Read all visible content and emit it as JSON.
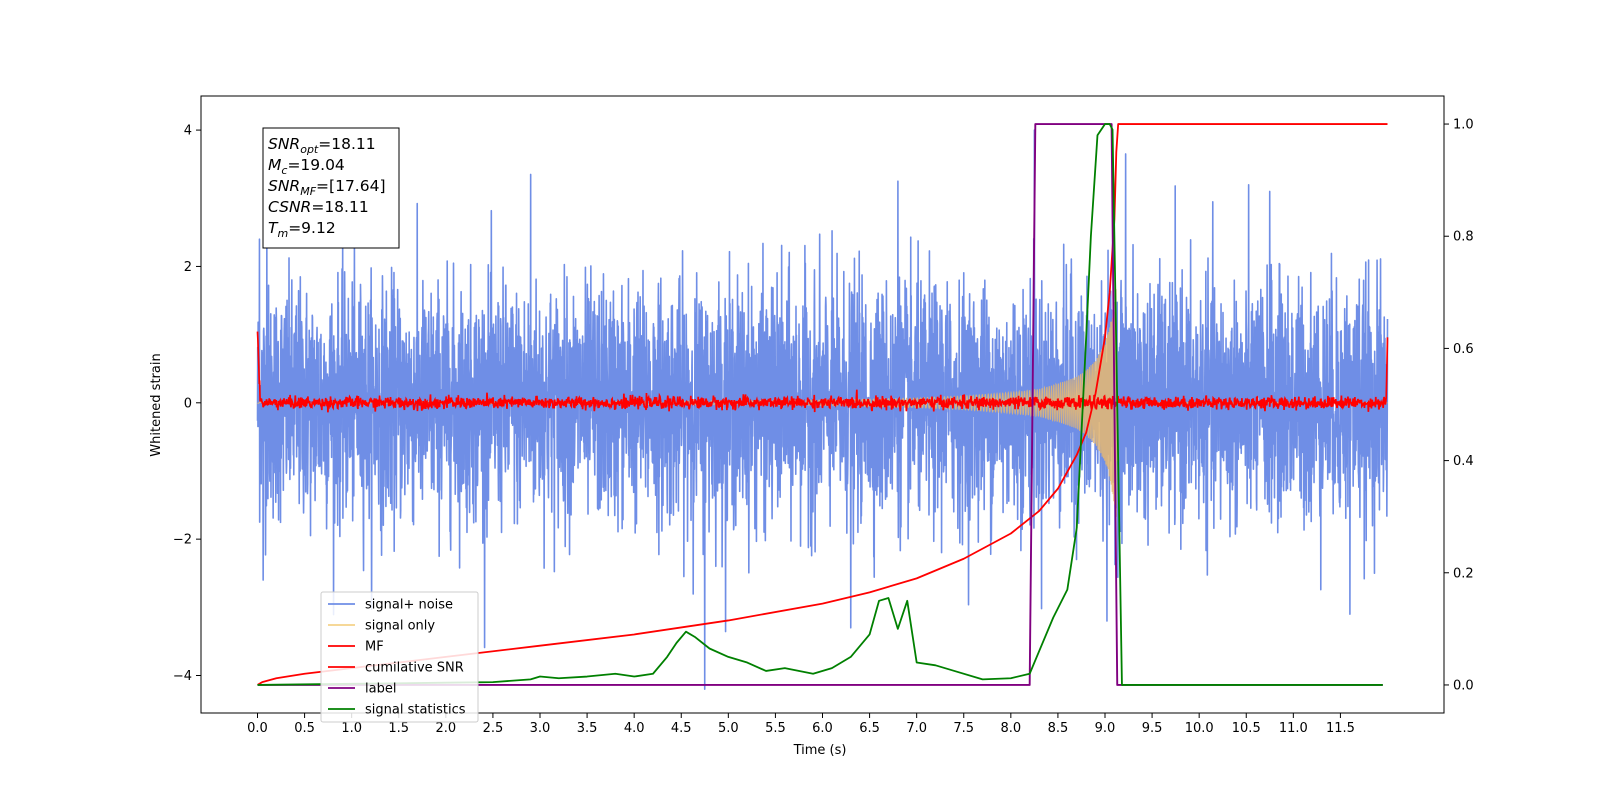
{
  "chart_data": {
    "type": "line",
    "title": "",
    "xlabel": "Time (s)",
    "ylabel": "Whitened strain",
    "xlim": [
      -0.6,
      12.6
    ],
    "ylim": [
      -4.55,
      4.5
    ],
    "y2lim": [
      -0.05,
      1.05
    ],
    "x_ticks": [
      0.0,
      0.5,
      1.0,
      1.5,
      2.0,
      2.5,
      3.0,
      3.5,
      4.0,
      4.5,
      5.0,
      5.5,
      6.0,
      6.5,
      7.0,
      7.5,
      8.0,
      8.5,
      9.0,
      9.5,
      10.0,
      10.5,
      11.0,
      11.5
    ],
    "x_tick_labels": [
      "0.0",
      "0.5",
      "1.0",
      "1.5",
      "2.0",
      "2.5",
      "3.0",
      "3.5",
      "4.0",
      "4.5",
      "5.0",
      "5.5",
      "6.0",
      "6.5",
      "7.0",
      "7.5",
      "8.0",
      "8.5",
      "9.0",
      "9.5",
      "10.0",
      "10.5",
      "11.0",
      "11.5"
    ],
    "y_ticks": [
      -4,
      -2,
      0,
      2,
      4
    ],
    "y_tick_labels": [
      "−4",
      "−2",
      "0",
      "2",
      "4"
    ],
    "y2_ticks": [
      0.0,
      0.2,
      0.4,
      0.6,
      0.8,
      1.0
    ],
    "y2_tick_labels": [
      "0.0",
      "0.2",
      "0.4",
      "0.6",
      "0.8",
      "1.0"
    ],
    "grid": false,
    "legend_position": "lower-left",
    "annotation": [
      {
        "base": "SNR",
        "sub": "opt",
        "rest": "=18.11"
      },
      {
        "base": "M",
        "sub": "c",
        "rest": "=19.04"
      },
      {
        "base": "SNR",
        "sub": "MF",
        "rest": "=[17.64]"
      },
      {
        "base": "CSNR",
        "sub": "",
        "rest": "=18.11"
      },
      {
        "base": "T",
        "sub": "m",
        "rest": "=9.12"
      }
    ],
    "legend": [
      {
        "label": "signal+ noise",
        "color": "#6f8ee6"
      },
      {
        "label": "signal only",
        "color": "#f5d28a"
      },
      {
        "label": "MF",
        "color": "#ff0000"
      },
      {
        "label": "cumilative SNR",
        "color": "#ff0000"
      },
      {
        "label": "label",
        "color": "#800080"
      },
      {
        "label": "signal statistics",
        "color": "#008000"
      }
    ],
    "series": [
      {
        "name": "signal+ noise",
        "axis": "left",
        "color": "#6f8ee6",
        "description": "dense noise trace, t = 0 to 12 s, typical amplitude about ±1.5, peaks to about ±3",
        "x_range": [
          0.0,
          12.0
        ],
        "envelope": 2.6,
        "spikes": [
          [
            0.02,
            2.4
          ],
          [
            0.06,
            -2.6
          ],
          [
            0.1,
            2.5
          ],
          [
            2.9,
            3.35
          ],
          [
            4.75,
            -4.2
          ],
          [
            6.3,
            -3.3
          ],
          [
            6.8,
            3.25
          ],
          [
            8.25,
            4.0
          ],
          [
            9.02,
            -3.2
          ],
          [
            9.22,
            3.65
          ],
          [
            10.75,
            3.1
          ],
          [
            11.6,
            -3.1
          ]
        ]
      },
      {
        "name": "signal only",
        "axis": "left",
        "color": "#f5d28a",
        "description": "chirp growing in amplitude toward merger, ends abruptly near 9.12 s",
        "x": [
          0.0,
          4.0,
          6.0,
          7.0,
          7.5,
          8.0,
          8.3,
          8.5,
          8.7,
          8.8,
          8.9,
          9.0,
          9.05,
          9.1,
          9.12,
          9.13,
          12.0
        ],
        "amplitude": [
          0.01,
          0.02,
          0.04,
          0.07,
          0.1,
          0.15,
          0.2,
          0.28,
          0.38,
          0.48,
          0.62,
          0.88,
          1.1,
          1.5,
          1.7,
          0.0,
          0.0
        ]
      },
      {
        "name": "MF",
        "axis": "left",
        "color": "#ff0000",
        "description": "matched-filter output, small fluctuations about 0 (around ±0.15), starts near 1.0 at t=0",
        "x_range": [
          0.0,
          12.0
        ],
        "start_value": 1.0,
        "end_value": 0.95
      },
      {
        "name": "cumilative SNR",
        "axis": "right",
        "x": [
          0.0,
          0.05,
          0.2,
          0.5,
          1.0,
          2.0,
          3.0,
          4.0,
          5.0,
          6.0,
          6.5,
          7.0,
          7.5,
          8.0,
          8.3,
          8.5,
          8.7,
          8.8,
          8.9,
          9.0,
          9.05,
          9.1,
          9.12,
          9.14,
          12.0
        ],
        "y": [
          0.0,
          0.005,
          0.012,
          0.02,
          0.03,
          0.05,
          0.07,
          0.09,
          0.115,
          0.145,
          0.165,
          0.19,
          0.225,
          0.27,
          0.31,
          0.35,
          0.41,
          0.45,
          0.52,
          0.62,
          0.7,
          0.83,
          0.95,
          1.0,
          1.0
        ],
        "color": "#ff0000"
      },
      {
        "name": "label",
        "axis": "right",
        "x": [
          0.0,
          8.2,
          8.26,
          9.07,
          9.13,
          11.95
        ],
        "y": [
          0.0,
          0.0,
          1.0,
          1.0,
          0.0,
          0.0
        ],
        "color": "#800080"
      },
      {
        "name": "signal statistics",
        "axis": "right",
        "x": [
          0.0,
          1.0,
          2.0,
          2.5,
          2.9,
          3.0,
          3.2,
          3.5,
          3.8,
          4.0,
          4.2,
          4.35,
          4.45,
          4.55,
          4.65,
          4.8,
          5.0,
          5.2,
          5.4,
          5.6,
          5.9,
          6.1,
          6.3,
          6.5,
          6.6,
          6.7,
          6.8,
          6.9,
          7.0,
          7.2,
          7.4,
          7.7,
          8.0,
          8.2,
          8.3,
          8.45,
          8.6,
          8.7,
          8.8,
          8.85,
          8.92,
          9.0,
          9.05,
          9.08,
          9.12,
          9.18,
          11.95
        ],
        "y": [
          0.0,
          0.002,
          0.004,
          0.005,
          0.01,
          0.015,
          0.012,
          0.015,
          0.02,
          0.015,
          0.02,
          0.05,
          0.075,
          0.095,
          0.085,
          0.065,
          0.05,
          0.04,
          0.025,
          0.03,
          0.02,
          0.03,
          0.05,
          0.09,
          0.15,
          0.155,
          0.1,
          0.15,
          0.04,
          0.035,
          0.025,
          0.01,
          0.012,
          0.02,
          0.06,
          0.12,
          0.17,
          0.28,
          0.62,
          0.8,
          0.98,
          1.0,
          1.0,
          0.99,
          0.6,
          0.0,
          0.0
        ],
        "color": "#008000"
      }
    ]
  }
}
